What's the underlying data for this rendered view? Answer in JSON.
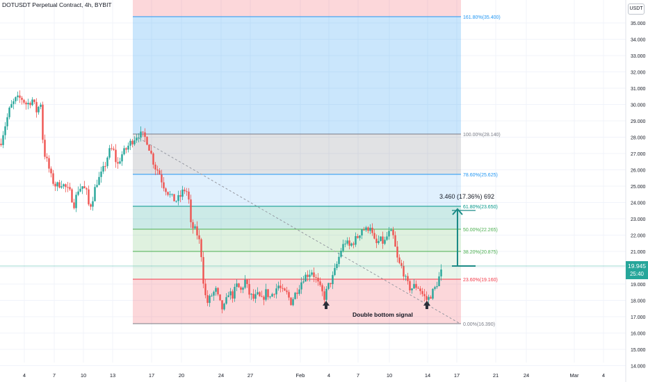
{
  "header": {
    "symbol_title": "DOTUSDT Perpetual Contract, 4h, BYBIT"
  },
  "axis": {
    "currency_badge": "USDT",
    "price_ticks": [
      "35.000",
      "34.000",
      "33.000",
      "32.000",
      "31.000",
      "30.000",
      "29.000",
      "28.000",
      "27.000",
      "26.000",
      "25.000",
      "24.000",
      "23.000",
      "22.000",
      "21.000",
      "20.000",
      "19.000",
      "18.000",
      "17.000",
      "16.000",
      "15.000",
      "14.000"
    ],
    "time_ticks": [
      "4",
      "7",
      "10",
      "13",
      "17",
      "20",
      "24",
      "27",
      "Feb",
      "4",
      "7",
      "10",
      "14",
      "17",
      "21",
      "24",
      "Mar",
      "4"
    ],
    "current_price": "19.945",
    "countdown": "25:40"
  },
  "fib_levels": [
    {
      "label": "161.80%(35.400)",
      "color": "#2196f3"
    },
    {
      "label": "100.00%(28.140)",
      "color": "#787b86"
    },
    {
      "label": "78.60%(25.625)",
      "color": "#2196f3"
    },
    {
      "label": "61.80%(23.650)",
      "color": "#009688"
    },
    {
      "label": "50.00%(22.265)",
      "color": "#4caf50"
    },
    {
      "label": "38.20%(20.875)",
      "color": "#4caf50"
    },
    {
      "label": "23.60%(19.160)",
      "color": "#f23645"
    },
    {
      "label": "0.00%(16.390)",
      "color": "#787b86"
    }
  ],
  "annotations": {
    "measure_label": "3.460 (17.36%) 692",
    "signal_text": "Double bottom signal"
  },
  "colors": {
    "up": "#26a69a",
    "down": "#ef5350",
    "grid": "#f0f3fa"
  },
  "chart_data": {
    "type": "candlestick",
    "symbol": "DOTUSDT Perpetual Contract",
    "interval": "4h",
    "exchange": "BYBIT",
    "x_ticks": [
      "4",
      "7",
      "10",
      "13",
      "17",
      "20",
      "24",
      "27",
      "Feb",
      "4",
      "7",
      "10",
      "14",
      "17",
      "21",
      "24",
      "Mar",
      "4"
    ],
    "ylim": [
      13.6,
      36.2
    ],
    "y_ticks": [
      35,
      34,
      33,
      32,
      31,
      30,
      29,
      28,
      27,
      26,
      25,
      24,
      23,
      22,
      21,
      20,
      19,
      18,
      17,
      16,
      15,
      14
    ],
    "price_path": [
      [
        0,
        27.6
      ],
      [
        6,
        28.6
      ],
      [
        14,
        29.8
      ],
      [
        22,
        30.3
      ],
      [
        30,
        30.4
      ],
      [
        38,
        30.0
      ],
      [
        46,
        30.3
      ],
      [
        52,
        29.6
      ],
      [
        58,
        30.1
      ],
      [
        62,
        27.2
      ],
      [
        68,
        26.4
      ],
      [
        74,
        25.4
      ],
      [
        80,
        25.0
      ],
      [
        88,
        25.2
      ],
      [
        94,
        24.9
      ],
      [
        100,
        24.6
      ],
      [
        106,
        23.9
      ],
      [
        112,
        24.8
      ],
      [
        118,
        25.0
      ],
      [
        124,
        24.6
      ],
      [
        128,
        23.6
      ],
      [
        133,
        24.3
      ],
      [
        138,
        25.2
      ],
      [
        144,
        25.6
      ],
      [
        150,
        26.2
      ],
      [
        156,
        27.1
      ],
      [
        162,
        27.3
      ],
      [
        168,
        26.2
      ],
      [
        174,
        26.9
      ],
      [
        180,
        27.2
      ],
      [
        186,
        27.6
      ],
      [
        192,
        27.9
      ],
      [
        198,
        28.2
      ],
      [
        204,
        28.1
      ],
      [
        210,
        27.9
      ],
      [
        216,
        27.1
      ],
      [
        222,
        26.2
      ],
      [
        228,
        25.9
      ],
      [
        234,
        25.1
      ],
      [
        240,
        24.7
      ],
      [
        246,
        24.3
      ],
      [
        252,
        24.1
      ],
      [
        258,
        24.3
      ],
      [
        264,
        24.8
      ],
      [
        270,
        24.6
      ],
      [
        274,
        22.6
      ],
      [
        280,
        22.3
      ],
      [
        285,
        21.9
      ],
      [
        289,
        20.8
      ],
      [
        293,
        18.7
      ],
      [
        297,
        17.8
      ],
      [
        301,
        18.1
      ],
      [
        305,
        18.4
      ],
      [
        310,
        18.6
      ],
      [
        315,
        17.9
      ],
      [
        320,
        17.4
      ],
      [
        324,
        17.8
      ],
      [
        328,
        18.5
      ],
      [
        334,
        18.3
      ],
      [
        340,
        18.9
      ],
      [
        346,
        18.6
      ],
      [
        352,
        19.2
      ],
      [
        358,
        18.4
      ],
      [
        364,
        18.1
      ],
      [
        370,
        18.3
      ],
      [
        376,
        18.0
      ],
      [
        382,
        18.5
      ],
      [
        388,
        18.2
      ],
      [
        394,
        18.6
      ],
      [
        400,
        18.9
      ],
      [
        406,
        18.5
      ],
      [
        412,
        18.4
      ],
      [
        418,
        17.9
      ],
      [
        424,
        18.4
      ],
      [
        430,
        18.9
      ],
      [
        436,
        19.4
      ],
      [
        442,
        19.6
      ],
      [
        448,
        19.8
      ],
      [
        454,
        19.3
      ],
      [
        460,
        18.7
      ],
      [
        466,
        18.2
      ],
      [
        472,
        18.9
      ],
      [
        478,
        19.4
      ],
      [
        484,
        20.2
      ],
      [
        490,
        21.1
      ],
      [
        496,
        21.6
      ],
      [
        502,
        21.3
      ],
      [
        508,
        21.6
      ],
      [
        514,
        21.9
      ],
      [
        520,
        22.4
      ],
      [
        526,
        22.3
      ],
      [
        532,
        22.6
      ],
      [
        536,
        21.8
      ],
      [
        540,
        21.4
      ],
      [
        546,
        21.7
      ],
      [
        552,
        21.5
      ],
      [
        558,
        22.1
      ],
      [
        564,
        22.1
      ],
      [
        568,
        21.2
      ],
      [
        572,
        20.3
      ],
      [
        578,
        20.0
      ],
      [
        584,
        19.1
      ],
      [
        590,
        18.7
      ],
      [
        596,
        18.9
      ],
      [
        602,
        18.8
      ],
      [
        608,
        18.3
      ],
      [
        614,
        18.0
      ],
      [
        620,
        18.4
      ],
      [
        626,
        18.8
      ],
      [
        630,
        19.3
      ],
      [
        636,
        19.945
      ]
    ]
  }
}
